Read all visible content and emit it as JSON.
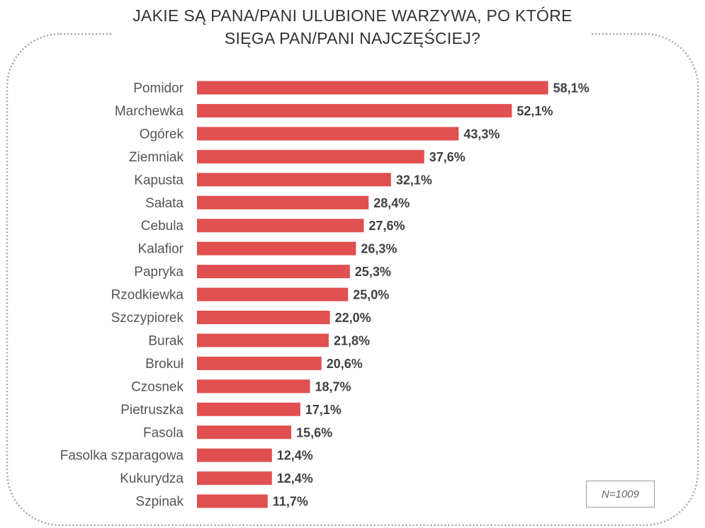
{
  "chart_data": {
    "type": "bar",
    "orientation": "horizontal",
    "title": "JAKIE SĄ PANA/PANI ULUBIONE WARZYWA, PO KTÓRE\nSIĘGA PAN/PANI NAJCZĘŚCIEJ?",
    "categories": [
      "Pomidor",
      "Marchewka",
      "Ogórek",
      "Ziemniak",
      "Kapusta",
      "Sałata",
      "Cebula",
      "Kalafior",
      "Papryka",
      "Rzodkiewka",
      "Szczypiorek",
      "Burak",
      "Brokuł",
      "Czosnek",
      "Pietruszka",
      "Fasola",
      "Fasolka szparagowa",
      "Kukurydza",
      "Szpinak"
    ],
    "values": [
      58.1,
      52.1,
      43.3,
      37.6,
      32.1,
      28.4,
      27.6,
      26.3,
      25.3,
      25.0,
      22.0,
      21.8,
      20.6,
      18.7,
      17.1,
      15.6,
      12.4,
      12.4,
      11.7
    ],
    "value_labels": [
      "58,1%",
      "52,1%",
      "43,3%",
      "37,6%",
      "32,1%",
      "28,4%",
      "27,6%",
      "26,3%",
      "25,3%",
      "25,0%",
      "22,0%",
      "21,8%",
      "20,6%",
      "18,7%",
      "17,1%",
      "15,6%",
      "12,4%",
      "12,4%",
      "11,7%"
    ],
    "unit": "%",
    "bar_color": "#e05050",
    "grid": false,
    "legend": "none",
    "note": "N=1009"
  }
}
